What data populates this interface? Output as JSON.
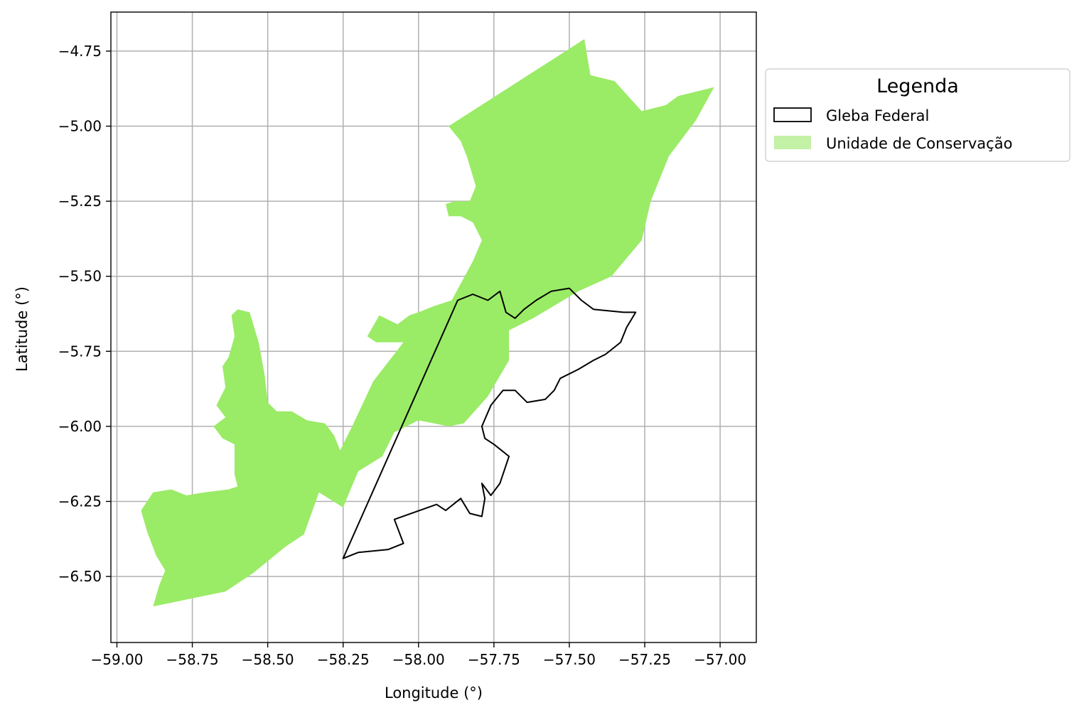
{
  "map": {
    "xlabel": "Longitude (°)",
    "ylabel": "Latitude (°)",
    "xlim": [
      -59.02,
      -56.88
    ],
    "ylim": [
      -6.72,
      -4.62
    ],
    "x_ticks": [
      -59.0,
      -58.75,
      -58.5,
      -58.25,
      -58.0,
      -57.75,
      -57.5,
      -57.25,
      -57.0
    ],
    "y_ticks": [
      -4.75,
      -5.0,
      -5.25,
      -5.5,
      -5.75,
      -6.0,
      -6.25,
      -6.5
    ],
    "x_tick_labels": [
      "−59.00",
      "−58.75",
      "−58.50",
      "−58.25",
      "−58.00",
      "−57.75",
      "−57.50",
      "−57.25",
      "−57.00"
    ],
    "y_tick_labels": [
      "−4.75",
      "−5.00",
      "−5.25",
      "−5.50",
      "−5.75",
      "−6.00",
      "−6.25",
      "−6.50"
    ],
    "grid": true,
    "layers": [
      {
        "name": "Unidade de Conservação",
        "fill": "#9aeb66",
        "stroke": "none",
        "coords": [
          [
            -58.88,
            -6.6
          ],
          [
            -58.86,
            -6.53
          ],
          [
            -58.84,
            -6.48
          ],
          [
            -58.87,
            -6.43
          ],
          [
            -58.9,
            -6.35
          ],
          [
            -58.92,
            -6.28
          ],
          [
            -58.88,
            -6.22
          ],
          [
            -58.82,
            -6.21
          ],
          [
            -58.77,
            -6.23
          ],
          [
            -58.71,
            -6.22
          ],
          [
            -58.63,
            -6.21
          ],
          [
            -58.6,
            -6.2
          ],
          [
            -58.61,
            -6.16
          ],
          [
            -58.61,
            -6.06
          ],
          [
            -58.65,
            -6.04
          ],
          [
            -58.68,
            -6.0
          ],
          [
            -58.64,
            -5.97
          ],
          [
            -58.67,
            -5.93
          ],
          [
            -58.64,
            -5.87
          ],
          [
            -58.65,
            -5.8
          ],
          [
            -58.63,
            -5.77
          ],
          [
            -58.61,
            -5.7
          ],
          [
            -58.62,
            -5.63
          ],
          [
            -58.6,
            -5.61
          ],
          [
            -58.56,
            -5.62
          ],
          [
            -58.53,
            -5.72
          ],
          [
            -58.51,
            -5.83
          ],
          [
            -58.5,
            -5.92
          ],
          [
            -58.47,
            -5.95
          ],
          [
            -58.42,
            -5.95
          ],
          [
            -58.37,
            -5.98
          ],
          [
            -58.31,
            -5.99
          ],
          [
            -58.28,
            -6.03
          ],
          [
            -58.26,
            -6.08
          ],
          [
            -58.22,
            -6.0
          ],
          [
            -58.15,
            -5.85
          ],
          [
            -58.05,
            -5.72
          ],
          [
            -58.1,
            -5.72
          ],
          [
            -58.14,
            -5.72
          ],
          [
            -58.17,
            -5.7
          ],
          [
            -58.13,
            -5.63
          ],
          [
            -58.07,
            -5.66
          ],
          [
            -58.03,
            -5.63
          ],
          [
            -58.0,
            -5.62
          ],
          [
            -57.95,
            -5.6
          ],
          [
            -57.89,
            -5.58
          ],
          [
            -57.82,
            -5.45
          ],
          [
            -57.79,
            -5.38
          ],
          [
            -57.82,
            -5.32
          ],
          [
            -57.86,
            -5.3
          ],
          [
            -57.9,
            -5.3
          ],
          [
            -57.91,
            -5.26
          ],
          [
            -57.88,
            -5.25
          ],
          [
            -57.83,
            -5.25
          ],
          [
            -57.81,
            -5.2
          ],
          [
            -57.84,
            -5.1
          ],
          [
            -57.86,
            -5.05
          ],
          [
            -57.9,
            -5.0
          ],
          [
            -57.45,
            -4.71
          ],
          [
            -57.43,
            -4.83
          ],
          [
            -57.35,
            -4.85
          ],
          [
            -57.26,
            -4.95
          ],
          [
            -57.18,
            -4.93
          ],
          [
            -57.14,
            -4.9
          ],
          [
            -57.02,
            -4.87
          ],
          [
            -57.08,
            -4.98
          ],
          [
            -57.17,
            -5.1
          ],
          [
            -57.23,
            -5.25
          ],
          [
            -57.26,
            -5.38
          ],
          [
            -57.36,
            -5.5
          ],
          [
            -57.47,
            -5.55
          ],
          [
            -57.62,
            -5.64
          ],
          [
            -57.7,
            -5.68
          ],
          [
            -57.7,
            -5.78
          ],
          [
            -57.77,
            -5.9
          ],
          [
            -57.85,
            -5.99
          ],
          [
            -57.9,
            -6.0
          ],
          [
            -58.0,
            -5.98
          ],
          [
            -58.08,
            -6.02
          ],
          [
            -58.12,
            -6.1
          ],
          [
            -58.2,
            -6.15
          ],
          [
            -58.25,
            -6.27
          ],
          [
            -58.33,
            -6.22
          ],
          [
            -58.38,
            -6.36
          ],
          [
            -58.44,
            -6.4
          ],
          [
            -58.55,
            -6.49
          ],
          [
            -58.64,
            -6.55
          ],
          [
            -58.88,
            -6.6
          ]
        ]
      },
      {
        "name": "Gleba Federal",
        "fill": "none",
        "stroke": "#000000",
        "coords": [
          [
            -58.25,
            -6.44
          ],
          [
            -57.87,
            -5.58
          ],
          [
            -57.82,
            -5.56
          ],
          [
            -57.77,
            -5.58
          ],
          [
            -57.73,
            -5.55
          ],
          [
            -57.71,
            -5.62
          ],
          [
            -57.68,
            -5.64
          ],
          [
            -57.65,
            -5.61
          ],
          [
            -57.61,
            -5.58
          ],
          [
            -57.56,
            -5.55
          ],
          [
            -57.5,
            -5.54
          ],
          [
            -57.46,
            -5.58
          ],
          [
            -57.42,
            -5.61
          ],
          [
            -57.32,
            -5.62
          ],
          [
            -57.28,
            -5.62
          ],
          [
            -57.31,
            -5.67
          ],
          [
            -57.33,
            -5.72
          ],
          [
            -57.38,
            -5.76
          ],
          [
            -57.42,
            -5.78
          ],
          [
            -57.47,
            -5.81
          ],
          [
            -57.53,
            -5.84
          ],
          [
            -57.55,
            -5.88
          ],
          [
            -57.58,
            -5.91
          ],
          [
            -57.64,
            -5.92
          ],
          [
            -57.68,
            -5.88
          ],
          [
            -57.72,
            -5.88
          ],
          [
            -57.76,
            -5.93
          ],
          [
            -57.79,
            -6.0
          ],
          [
            -57.78,
            -6.04
          ],
          [
            -57.75,
            -6.06
          ],
          [
            -57.7,
            -6.1
          ],
          [
            -57.73,
            -6.19
          ],
          [
            -57.76,
            -6.23
          ],
          [
            -57.79,
            -6.19
          ],
          [
            -57.78,
            -6.24
          ],
          [
            -57.79,
            -6.3
          ],
          [
            -57.83,
            -6.29
          ],
          [
            -57.86,
            -6.24
          ],
          [
            -57.91,
            -6.28
          ],
          [
            -57.94,
            -6.26
          ],
          [
            -58.08,
            -6.31
          ],
          [
            -58.05,
            -6.39
          ],
          [
            -58.1,
            -6.41
          ],
          [
            -58.2,
            -6.42
          ],
          [
            -58.25,
            -6.44
          ]
        ]
      }
    ]
  },
  "legend": {
    "title": "Legenda",
    "items": [
      {
        "label": "Gleba Federal",
        "fill": "#ffffff",
        "stroke": "#000000"
      },
      {
        "label": "Unidade de Conservação",
        "fill": "#c3f1a6",
        "stroke": "none"
      }
    ]
  }
}
